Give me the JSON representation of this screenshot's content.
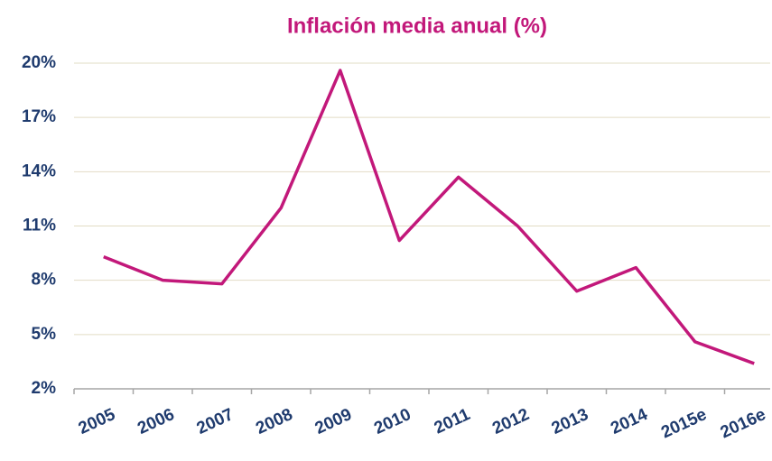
{
  "chart_data": {
    "type": "line",
    "title": "Inflación media anual (%)",
    "categories": [
      "2005",
      "2006",
      "2007",
      "2008",
      "2009",
      "2010",
      "2011",
      "2012",
      "2013",
      "2014",
      "2015e",
      "2016e"
    ],
    "series": [
      {
        "name": "Inflación media anual",
        "color": "#c2187a",
        "values": [
          9.3,
          8.0,
          7.8,
          12.0,
          19.6,
          10.2,
          13.7,
          11.0,
          7.4,
          8.7,
          4.6,
          3.4
        ]
      }
    ],
    "ylim": [
      2,
      20
    ],
    "yticks": [
      {
        "value": 2,
        "label": "2%"
      },
      {
        "value": 5,
        "label": "5%"
      },
      {
        "value": 8,
        "label": "8%"
      },
      {
        "value": 11,
        "label": "11%"
      },
      {
        "value": 14,
        "label": "14%"
      },
      {
        "value": 17,
        "label": "17%"
      },
      {
        "value": 20,
        "label": "20%"
      }
    ],
    "grid": true
  }
}
